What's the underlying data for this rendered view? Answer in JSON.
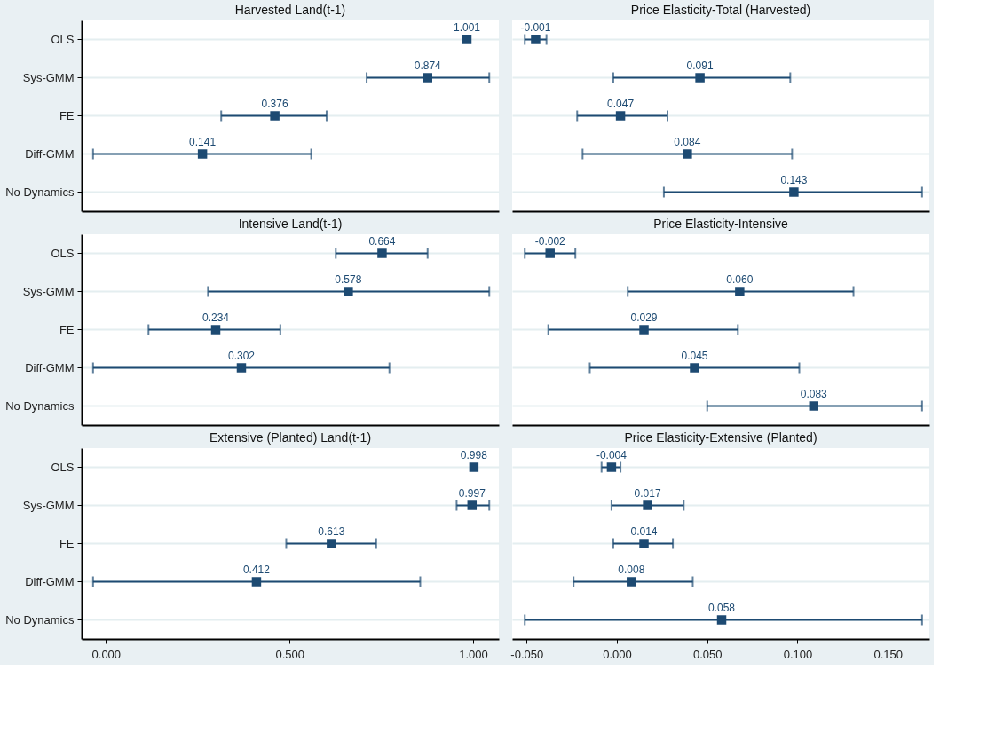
{
  "chart_data": [
    {
      "type": "scatter",
      "orientation": "horizontal",
      "title": "Harvested Land(t-1)",
      "categories": [
        "OLS",
        "Sys-GMM",
        "FE",
        "Diff-GMM",
        "No Dynamics"
      ],
      "values": [
        0.983,
        0.876,
        0.46,
        0.263,
        null
      ],
      "errors": [
        null,
        [
          0.71,
          1.044
        ],
        [
          0.314,
          0.601
        ],
        [
          -0.035,
          0.559
        ],
        null
      ],
      "color": "#1d4a72",
      "marker": "square",
      "grid": "y",
      "xlim": [
        -0.066,
        1.07
      ],
      "tick_labels": "y",
      "annotations": [
        {
          "text": "1.001",
          "x": 0.983,
          "y": "OLS"
        },
        {
          "text": "0.874",
          "x": 0.876,
          "y": "Sys-GMM"
        },
        {
          "text": "0.376",
          "x": 0.46,
          "y": "FE"
        },
        {
          "text": "0.141",
          "x": 0.263,
          "y": "Diff-GMM"
        }
      ]
    },
    {
      "type": "scatter",
      "orientation": "horizontal",
      "title": "Price Elasticity-Total (Harvested)",
      "categories": [
        "OLS",
        "Sys-GMM",
        "FE",
        "Diff-GMM",
        "No Dynamics"
      ],
      "values": [
        -0.045,
        0.046,
        0.002,
        0.039,
        0.098
      ],
      "errors": [
        [
          -0.051,
          -0.039
        ],
        [
          -0.002,
          0.096
        ],
        [
          -0.022,
          0.028
        ],
        [
          -0.019,
          0.097
        ],
        [
          0.026,
          0.169
        ]
      ],
      "color": "#1d4a72",
      "marker": "square",
      "grid": "y",
      "xlim": [
        -0.058,
        0.173
      ],
      "tick_labels": false,
      "annotations": [
        {
          "text": "-0.001",
          "x": -0.045,
          "y": "OLS"
        },
        {
          "text": "0.091",
          "x": 0.046,
          "y": "Sys-GMM"
        },
        {
          "text": "0.047",
          "x": 0.002,
          "y": "FE"
        },
        {
          "text": "0.084",
          "x": 0.039,
          "y": "Diff-GMM"
        },
        {
          "text": "0.143",
          "x": 0.098,
          "y": "No Dynamics"
        }
      ]
    },
    {
      "type": "scatter",
      "orientation": "horizontal",
      "title": "Intensive Land(t-1)",
      "categories": [
        "OLS",
        "Sys-GMM",
        "FE",
        "Diff-GMM",
        "No Dynamics"
      ],
      "values": [
        0.752,
        0.66,
        0.299,
        0.369,
        null
      ],
      "errors": [
        [
          0.626,
          0.876
        ],
        [
          0.278,
          1.044
        ],
        [
          0.116,
          0.475
        ],
        [
          -0.035,
          0.772
        ],
        null
      ],
      "color": "#1d4a72",
      "marker": "square",
      "grid": "y",
      "xlim": [
        -0.066,
        1.07
      ],
      "tick_labels": "y",
      "annotations": [
        {
          "text": "0.664",
          "x": 0.752,
          "y": "OLS"
        },
        {
          "text": "0.578",
          "x": 0.66,
          "y": "Sys-GMM"
        },
        {
          "text": "0.234",
          "x": 0.299,
          "y": "FE"
        },
        {
          "text": "0.302",
          "x": 0.369,
          "y": "Diff-GMM"
        }
      ]
    },
    {
      "type": "scatter",
      "orientation": "horizontal",
      "title": "Price Elasticity-Intensive",
      "categories": [
        "OLS",
        "Sys-GMM",
        "FE",
        "Diff-GMM",
        "No Dynamics"
      ],
      "values": [
        -0.037,
        0.068,
        0.015,
        0.043,
        0.109
      ],
      "errors": [
        [
          -0.051,
          -0.023
        ],
        [
          0.006,
          0.131
        ],
        [
          -0.038,
          0.067
        ],
        [
          -0.015,
          0.101
        ],
        [
          0.05,
          0.169
        ]
      ],
      "color": "#1d4a72",
      "marker": "square",
      "grid": "y",
      "xlim": [
        -0.058,
        0.173
      ],
      "tick_labels": false,
      "annotations": [
        {
          "text": "-0.002",
          "x": -0.037,
          "y": "OLS"
        },
        {
          "text": "0.060",
          "x": 0.068,
          "y": "Sys-GMM"
        },
        {
          "text": "0.029",
          "x": 0.015,
          "y": "FE"
        },
        {
          "text": "0.045",
          "x": 0.043,
          "y": "Diff-GMM"
        },
        {
          "text": "0.083",
          "x": 0.109,
          "y": "No Dynamics"
        }
      ]
    },
    {
      "type": "scatter",
      "orientation": "horizontal",
      "title": "Extensive (Planted) Land(t-1)",
      "categories": [
        "OLS",
        "Sys-GMM",
        "FE",
        "Diff-GMM",
        "No Dynamics"
      ],
      "values": [
        1.002,
        0.997,
        0.614,
        0.41,
        null
      ],
      "errors": [
        null,
        [
          0.955,
          1.044
        ],
        [
          0.491,
          0.736
        ],
        [
          -0.035,
          0.856
        ],
        null
      ],
      "color": "#1d4a72",
      "marker": "square",
      "grid": "y",
      "xlim": [
        -0.066,
        1.07
      ],
      "xticks": [
        {
          "value": 0,
          "label": "0.000"
        },
        {
          "value": 0.5,
          "label": "0.500"
        },
        {
          "value": 1,
          "label": "1.000"
        }
      ],
      "annotations": [
        {
          "text": "0.998",
          "x": 1.002,
          "y": "OLS"
        },
        {
          "text": "0.997",
          "x": 0.997,
          "y": "Sys-GMM"
        },
        {
          "text": "0.613",
          "x": 0.614,
          "y": "FE"
        },
        {
          "text": "0.412",
          "x": 0.41,
          "y": "Diff-GMM"
        }
      ]
    },
    {
      "type": "scatter",
      "orientation": "horizontal",
      "title": "Price Elasticity-Extensive (Planted)",
      "categories": [
        "OLS",
        "Sys-GMM",
        "FE",
        "Diff-GMM",
        "No Dynamics"
      ],
      "values": [
        -0.003,
        0.017,
        0.015,
        0.008,
        0.058
      ],
      "errors": [
        [
          -0.0085,
          0.002
        ],
        [
          -0.003,
          0.037
        ],
        [
          -0.002,
          0.031
        ],
        [
          -0.024,
          0.042
        ],
        [
          -0.051,
          0.169
        ]
      ],
      "color": "#1d4a72",
      "marker": "square",
      "grid": "y",
      "xlim": [
        -0.058,
        0.173
      ],
      "xticks": [
        {
          "value": -0.05,
          "label": "-0.050"
        },
        {
          "value": 0,
          "label": "0.000"
        },
        {
          "value": 0.05,
          "label": "0.050"
        },
        {
          "value": 0.1,
          "label": "0.100"
        },
        {
          "value": 0.15,
          "label": "0.150"
        }
      ],
      "tick_labels": "x",
      "annotations": [
        {
          "text": "-0.004",
          "x": -0.003,
          "y": "OLS"
        },
        {
          "text": "0.017",
          "x": 0.017,
          "y": "Sys-GMM"
        },
        {
          "text": "0.014",
          "x": 0.015,
          "y": "FE"
        },
        {
          "text": "0.008",
          "x": 0.008,
          "y": "Diff-GMM"
        },
        {
          "text": "0.058",
          "x": 0.058,
          "y": "No Dynamics"
        }
      ]
    }
  ]
}
